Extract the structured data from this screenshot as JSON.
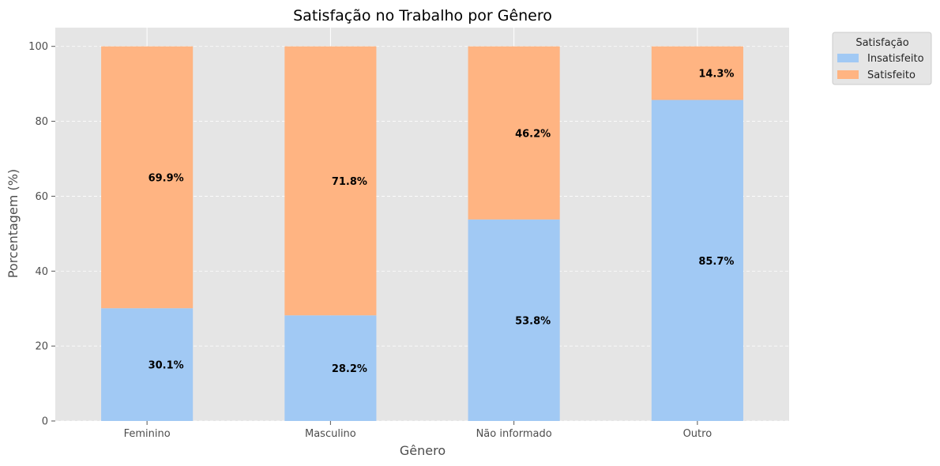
{
  "chart_data": {
    "type": "bar",
    "stacked": true,
    "title": "Satisfação no Trabalho por Gênero",
    "xlabel": "Gênero",
    "ylabel": "Porcentagem (%)",
    "categories": [
      "Feminino",
      "Masculino",
      "Não informado",
      "Outro"
    ],
    "series": [
      {
        "name": "Insatisfeito",
        "values": [
          30.1,
          28.2,
          53.8,
          85.7
        ],
        "labels": [
          "30.1%",
          "28.2%",
          "53.8%",
          "85.7%"
        ],
        "color": "#a1c9f4"
      },
      {
        "name": "Satisfeito",
        "values": [
          69.9,
          71.8,
          46.2,
          14.3
        ],
        "labels": [
          "69.9%",
          "71.8%",
          "46.2%",
          "14.3%"
        ],
        "color": "#ffb482"
      }
    ],
    "ylim": [
      0,
      105
    ],
    "yticks": [
      0,
      20,
      40,
      60,
      80,
      100
    ],
    "grid": true,
    "background": "#e5e5e5",
    "legend": {
      "title": "Satisfação",
      "position": "outside-top-right"
    }
  }
}
